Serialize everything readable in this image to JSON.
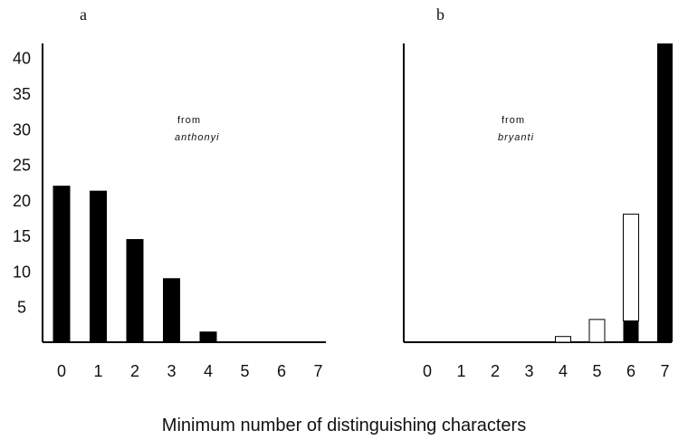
{
  "xlabel": "Minimum number of distinguishing characters",
  "chart_data": [
    {
      "type": "bar",
      "panel_label": "a",
      "annotation_line1": "from",
      "annotation_line2": "anthonyi",
      "categories": [
        "0",
        "1",
        "2",
        "3",
        "4",
        "5",
        "6",
        "7"
      ],
      "values": [
        22,
        21.3,
        14.5,
        9,
        1.5,
        0,
        0,
        0
      ],
      "ylim": [
        0,
        42
      ],
      "yticks": [
        5,
        10,
        15,
        20,
        25,
        30,
        35,
        40
      ],
      "colors": {
        "bar": "#000000"
      }
    },
    {
      "type": "bar",
      "panel_label": "b",
      "annotation_line1": "from",
      "annotation_line2": "bryanti",
      "categories": [
        "0",
        "1",
        "2",
        "3",
        "4",
        "5",
        "6",
        "7"
      ],
      "series": [
        {
          "values": [
            0,
            0,
            0,
            0,
            0,
            0,
            3,
            42
          ],
          "color": "#000000"
        },
        {
          "values": [
            0,
            0,
            0,
            0,
            0.8,
            3.2,
            15,
            0
          ],
          "color": "#ffffff"
        }
      ],
      "ylim": [
        0,
        42
      ]
    }
  ]
}
